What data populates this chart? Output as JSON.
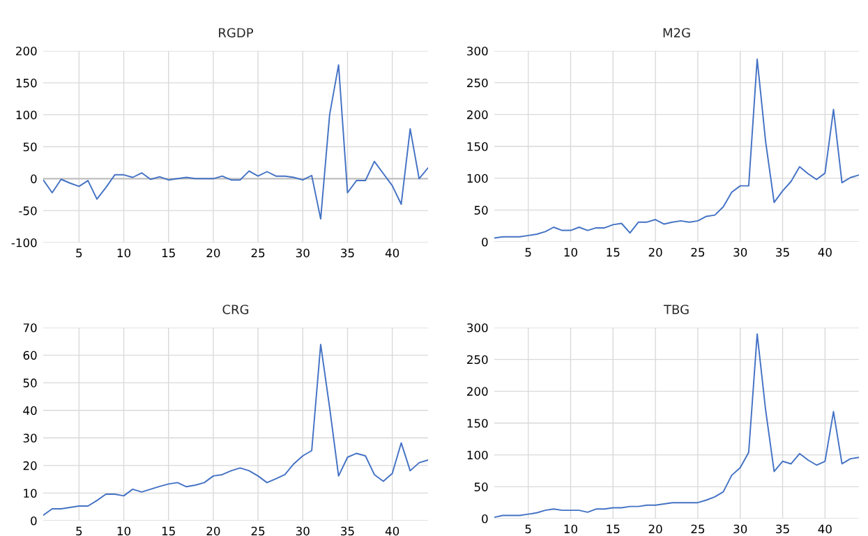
{
  "chart_data": [
    {
      "type": "line",
      "title": "RGDP",
      "x": [
        1,
        2,
        3,
        4,
        5,
        6,
        7,
        8,
        9,
        10,
        11,
        12,
        13,
        14,
        15,
        16,
        17,
        18,
        19,
        20,
        21,
        22,
        23,
        24,
        25,
        26,
        27,
        28,
        29,
        30,
        31,
        32,
        33,
        34,
        35,
        36,
        37,
        38,
        39,
        40,
        41,
        42,
        43,
        44
      ],
      "series": [
        {
          "color": "#4472c4",
          "values": [
            -2,
            -22,
            -1,
            -7,
            -12,
            -3,
            -32,
            -14,
            6,
            6,
            2,
            9,
            -1,
            3,
            -2,
            0,
            2,
            0,
            0,
            0,
            4,
            -2,
            -2,
            12,
            4,
            11,
            4,
            4,
            2,
            -2,
            5,
            -63,
            100,
            178,
            -22,
            -3,
            -3,
            27,
            8,
            -11,
            -40,
            78,
            0,
            17
          ]
        }
      ],
      "xlim": [
        1,
        44
      ],
      "xticks": [
        5,
        10,
        15,
        20,
        25,
        30,
        35,
        40
      ],
      "ylim": [
        -100,
        200
      ],
      "yticks": [
        -100,
        -50,
        0,
        50,
        100,
        150,
        200
      ],
      "grid": true,
      "legend": false,
      "ref_lines": [
        {
          "axis": "y",
          "value": 0,
          "color": "#bfbfbf"
        }
      ]
    },
    {
      "type": "line",
      "title": "M2G",
      "x": [
        1,
        2,
        3,
        4,
        5,
        6,
        7,
        8,
        9,
        10,
        11,
        12,
        13,
        14,
        15,
        16,
        17,
        18,
        19,
        20,
        21,
        22,
        23,
        24,
        25,
        26,
        27,
        28,
        29,
        30,
        31,
        32,
        33,
        34,
        35,
        36,
        37,
        38,
        39,
        40,
        41,
        42,
        43,
        44
      ],
      "series": [
        {
          "color": "#4472c4",
          "values": [
            6,
            8,
            8,
            8,
            10,
            12,
            16,
            23,
            18,
            18,
            23,
            18,
            22,
            22,
            27,
            29,
            14,
            31,
            31,
            35,
            28,
            31,
            33,
            31,
            33,
            40,
            42,
            55,
            78,
            88,
            88,
            287,
            157,
            62,
            80,
            95,
            118,
            107,
            98,
            108,
            208,
            93,
            101,
            105
          ]
        }
      ],
      "xlim": [
        1,
        44
      ],
      "xticks": [
        5,
        10,
        15,
        20,
        25,
        30,
        35,
        40
      ],
      "ylim": [
        0,
        300
      ],
      "yticks": [
        0,
        50,
        100,
        150,
        200,
        250,
        300
      ],
      "grid": true,
      "legend": false
    },
    {
      "type": "line",
      "title": "CRG",
      "x": [
        1,
        2,
        3,
        4,
        5,
        6,
        7,
        8,
        9,
        10,
        11,
        12,
        13,
        14,
        15,
        16,
        17,
        18,
        19,
        20,
        21,
        22,
        23,
        24,
        25,
        26,
        27,
        28,
        29,
        30,
        31,
        32,
        33,
        34,
        35,
        36,
        37,
        38,
        39,
        40,
        41,
        42,
        43,
        44
      ],
      "series": [
        {
          "color": "#4472c4",
          "values": [
            2,
            4.3,
            4.3,
            4.8,
            5.3,
            5.3,
            7.3,
            9.6,
            9.6,
            9,
            11.4,
            10.4,
            11.4,
            12.4,
            13.3,
            13.8,
            12.3,
            12.9,
            13.8,
            16.2,
            16.7,
            18.1,
            19.1,
            18.1,
            16.2,
            13.8,
            15.2,
            16.7,
            20.6,
            23.5,
            25.4,
            63.9,
            41,
            16.2,
            23,
            24.4,
            23.5,
            16.7,
            14.3,
            17.1,
            28.2,
            18.1,
            21,
            22
          ]
        }
      ],
      "xlim": [
        1,
        44
      ],
      "xticks": [
        5,
        10,
        15,
        20,
        25,
        30,
        35,
        40
      ],
      "ylim": [
        0,
        70
      ],
      "yticks": [
        0,
        10,
        20,
        30,
        40,
        50,
        60,
        70
      ],
      "grid": true,
      "legend": false
    },
    {
      "type": "line",
      "title": "TBG",
      "x": [
        1,
        2,
        3,
        4,
        5,
        6,
        7,
        8,
        9,
        10,
        11,
        12,
        13,
        14,
        15,
        16,
        17,
        18,
        19,
        20,
        21,
        22,
        23,
        24,
        25,
        26,
        27,
        28,
        29,
        30,
        31,
        32,
        33,
        34,
        35,
        36,
        37,
        38,
        39,
        40,
        41,
        42,
        43,
        44
      ],
      "series": [
        {
          "color": "#4472c4",
          "values": [
            2,
            5,
            5,
            5,
            7,
            9,
            13,
            15,
            13,
            13,
            13,
            10,
            15,
            15,
            17,
            17,
            19,
            19,
            21,
            21,
            23,
            25,
            25,
            25,
            25,
            29,
            34,
            42,
            68,
            80,
            104,
            290,
            170,
            74,
            90,
            86,
            102,
            92,
            84,
            90,
            168,
            86,
            94,
            96
          ]
        }
      ],
      "xlim": [
        1,
        44
      ],
      "xticks": [
        5,
        10,
        15,
        20,
        25,
        30,
        35,
        40
      ],
      "ylim": [
        0,
        300
      ],
      "yticks": [
        0,
        50,
        100,
        150,
        200,
        250,
        300
      ],
      "grid": true,
      "legend": false
    }
  ]
}
